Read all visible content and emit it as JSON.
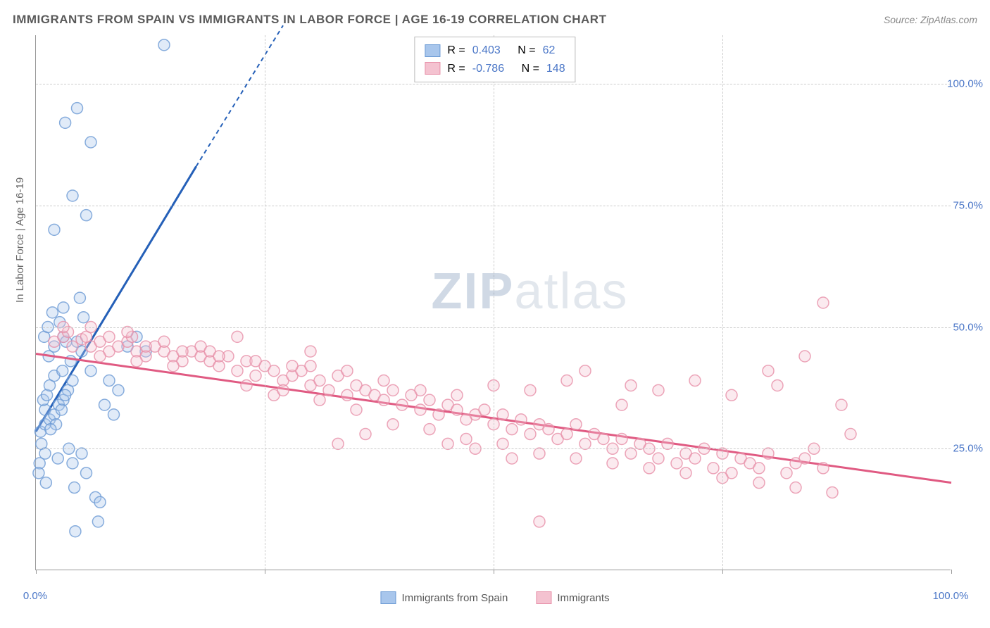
{
  "header": {
    "title": "IMMIGRANTS FROM SPAIN VS IMMIGRANTS IN LABOR FORCE | AGE 16-19 CORRELATION CHART",
    "source": "Source: ZipAtlas.com"
  },
  "watermark": {
    "brand_strong": "ZIP",
    "brand_light": "atlas"
  },
  "chart": {
    "type": "scatter",
    "xlabel": "",
    "ylabel": "In Labor Force | Age 16-19",
    "xlim": [
      0,
      100
    ],
    "ylim": [
      0,
      110
    ],
    "xticks": [
      0,
      25,
      50,
      75,
      100
    ],
    "yticks": [
      25,
      50,
      75,
      100
    ],
    "xtick_labels": [
      "0.0%",
      "",
      "",
      "",
      "100.0%"
    ],
    "ytick_labels": [
      "25.0%",
      "50.0%",
      "75.0%",
      "100.0%"
    ],
    "grid_color": "#cccccc",
    "axis_color": "#999999",
    "tick_label_color": "#4a76c7",
    "label_fontsize": 15,
    "marker_radius": 8,
    "series": [
      {
        "name": "Immigrants from Spain",
        "color_fill": "#a8c6ec",
        "color_stroke": "#6b9ad4",
        "trend_color": "#2560b8",
        "trend_width": 3,
        "R": "0.403",
        "N": "62",
        "trend": {
          "x1": 0,
          "y1": 28.5,
          "x2": 17.5,
          "y2": 83,
          "dash_from_x": 17.5,
          "x3": 27,
          "y3": 112
        },
        "points": [
          [
            0.5,
            28.5
          ],
          [
            1,
            30
          ],
          [
            1.5,
            31
          ],
          [
            1,
            33
          ],
          [
            2,
            32
          ],
          [
            0.8,
            35
          ],
          [
            2.5,
            34
          ],
          [
            1.2,
            36
          ],
          [
            3,
            35
          ],
          [
            1.5,
            38
          ],
          [
            2,
            40
          ],
          [
            0.6,
            26
          ],
          [
            3.5,
            37
          ],
          [
            1,
            24
          ],
          [
            2.2,
            30
          ],
          [
            0.4,
            22
          ],
          [
            4,
            39
          ],
          [
            2.8,
            33
          ],
          [
            1.6,
            29
          ],
          [
            3.2,
            36
          ],
          [
            0.9,
            48
          ],
          [
            1.3,
            50
          ],
          [
            2,
            46
          ],
          [
            2.6,
            51
          ],
          [
            1.8,
            53
          ],
          [
            3,
            48
          ],
          [
            4.5,
            47
          ],
          [
            5,
            45
          ],
          [
            3.8,
            43
          ],
          [
            6,
            41
          ],
          [
            0.3,
            20
          ],
          [
            1.1,
            18
          ],
          [
            4,
            22
          ],
          [
            5.5,
            20
          ],
          [
            6.5,
            15
          ],
          [
            7,
            14
          ],
          [
            4.2,
            17
          ],
          [
            2.4,
            23
          ],
          [
            3.6,
            25
          ],
          [
            5,
            24
          ],
          [
            8,
            39
          ],
          [
            9,
            37
          ],
          [
            10,
            46
          ],
          [
            11,
            48
          ],
          [
            12,
            45
          ],
          [
            5.5,
            73
          ],
          [
            4,
            77
          ],
          [
            3.2,
            92
          ],
          [
            4.5,
            95
          ],
          [
            14,
            108
          ],
          [
            6,
            88
          ],
          [
            2,
            70
          ],
          [
            3,
            54
          ],
          [
            4.8,
            56
          ],
          [
            1.4,
            44
          ],
          [
            2.9,
            41
          ],
          [
            3.3,
            47
          ],
          [
            7.5,
            34
          ],
          [
            8.5,
            32
          ],
          [
            5.2,
            52
          ],
          [
            6.8,
            10
          ],
          [
            4.3,
            8
          ]
        ]
      },
      {
        "name": "Immigrants",
        "color_fill": "#f4c2d0",
        "color_stroke": "#e78fa8",
        "trend_color": "#e05a82",
        "trend_width": 3,
        "R": "-0.786",
        "N": "148",
        "trend": {
          "x1": 0,
          "y1": 44.5,
          "x2": 100,
          "y2": 18,
          "dash_from_x": 200
        },
        "points": [
          [
            2,
            47
          ],
          [
            3,
            48
          ],
          [
            4,
            46
          ],
          [
            5,
            47.5
          ],
          [
            3.5,
            49
          ],
          [
            6,
            46
          ],
          [
            7,
            47
          ],
          [
            8,
            45
          ],
          [
            5.5,
            48
          ],
          [
            9,
            46
          ],
          [
            10,
            47
          ],
          [
            11,
            45
          ],
          [
            12,
            44
          ],
          [
            13,
            46
          ],
          [
            10.5,
            48
          ],
          [
            14,
            45
          ],
          [
            15,
            44
          ],
          [
            16,
            43
          ],
          [
            17,
            45
          ],
          [
            18,
            44
          ],
          [
            19,
            43
          ],
          [
            20,
            42
          ],
          [
            21,
            44
          ],
          [
            22,
            41
          ],
          [
            23,
            43
          ],
          [
            24,
            40
          ],
          [
            25,
            42
          ],
          [
            26,
            41
          ],
          [
            27,
            39
          ],
          [
            28,
            40
          ],
          [
            29,
            41
          ],
          [
            30,
            38
          ],
          [
            31,
            39
          ],
          [
            32,
            37
          ],
          [
            33,
            40
          ],
          [
            34,
            36
          ],
          [
            35,
            38
          ],
          [
            36,
            37
          ],
          [
            37,
            36
          ],
          [
            38,
            35
          ],
          [
            39,
            37
          ],
          [
            40,
            34
          ],
          [
            41,
            36
          ],
          [
            42,
            33
          ],
          [
            43,
            35
          ],
          [
            44,
            32
          ],
          [
            45,
            34
          ],
          [
            46,
            33
          ],
          [
            47,
            31
          ],
          [
            48,
            32
          ],
          [
            49,
            33
          ],
          [
            50,
            30
          ],
          [
            51,
            32
          ],
          [
            52,
            29
          ],
          [
            53,
            31
          ],
          [
            54,
            28
          ],
          [
            55,
            30
          ],
          [
            56,
            29
          ],
          [
            57,
            27
          ],
          [
            58,
            28
          ],
          [
            59,
            30
          ],
          [
            60,
            26
          ],
          [
            61,
            28
          ],
          [
            62,
            27
          ],
          [
            63,
            25
          ],
          [
            64,
            27
          ],
          [
            65,
            24
          ],
          [
            66,
            26
          ],
          [
            67,
            25
          ],
          [
            68,
            23
          ],
          [
            69,
            26
          ],
          [
            70,
            22
          ],
          [
            71,
            24
          ],
          [
            72,
            23
          ],
          [
            73,
            25
          ],
          [
            74,
            21
          ],
          [
            75,
            24
          ],
          [
            76,
            20
          ],
          [
            77,
            23
          ],
          [
            78,
            22
          ],
          [
            79,
            21
          ],
          [
            80,
            24
          ],
          [
            81,
            38
          ],
          [
            82,
            20
          ],
          [
            83,
            22
          ],
          [
            84,
            23
          ],
          [
            85,
            25
          ],
          [
            86,
            21
          ],
          [
            87,
            16
          ],
          [
            88,
            34
          ],
          [
            89,
            28
          ],
          [
            55,
            10
          ],
          [
            65,
            38
          ],
          [
            68,
            37
          ],
          [
            72,
            39
          ],
          [
            76,
            36
          ],
          [
            80,
            41
          ],
          [
            84,
            44
          ],
          [
            86,
            55
          ],
          [
            45,
            26
          ],
          [
            48,
            25
          ],
          [
            52,
            23
          ],
          [
            36,
            28
          ],
          [
            33,
            26
          ],
          [
            30,
            45
          ],
          [
            26,
            36
          ],
          [
            22,
            48
          ],
          [
            18,
            46
          ],
          [
            14,
            47
          ],
          [
            10,
            49
          ],
          [
            6,
            50
          ],
          [
            3,
            50
          ],
          [
            7,
            44
          ],
          [
            11,
            43
          ],
          [
            15,
            42
          ],
          [
            19,
            45
          ],
          [
            23,
            38
          ],
          [
            27,
            37
          ],
          [
            31,
            35
          ],
          [
            35,
            33
          ],
          [
            39,
            30
          ],
          [
            43,
            29
          ],
          [
            47,
            27
          ],
          [
            51,
            26
          ],
          [
            55,
            24
          ],
          [
            59,
            23
          ],
          [
            63,
            22
          ],
          [
            67,
            21
          ],
          [
            71,
            20
          ],
          [
            75,
            19
          ],
          [
            79,
            18
          ],
          [
            83,
            17
          ],
          [
            60,
            41
          ],
          [
            64,
            34
          ],
          [
            58,
            39
          ],
          [
            54,
            37
          ],
          [
            50,
            38
          ],
          [
            46,
            36
          ],
          [
            42,
            37
          ],
          [
            38,
            39
          ],
          [
            34,
            41
          ],
          [
            30,
            42
          ],
          [
            8,
            48
          ],
          [
            12,
            46
          ],
          [
            16,
            45
          ],
          [
            20,
            44
          ],
          [
            24,
            43
          ],
          [
            28,
            42
          ]
        ]
      }
    ]
  },
  "legend_top": {
    "stat_label_R": "R =",
    "stat_label_N": "N =",
    "stat_color": "#4a76c7"
  },
  "legend_bottom": {
    "items": [
      "Immigrants from Spain",
      "Immigrants"
    ]
  }
}
